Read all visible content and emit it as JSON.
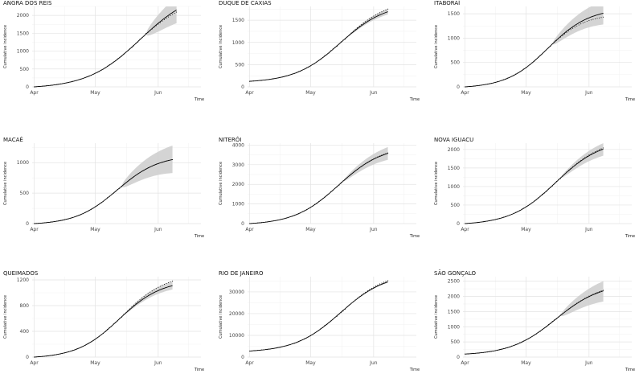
{
  "figure": {
    "x_axis_label": "Time",
    "y_axis_label": "Cumulative incidence",
    "x_tick_labels": [
      "Apr",
      "May",
      "Jun"
    ]
  },
  "colors": {
    "band": "#cccccc",
    "line": "#000000",
    "points": "#111111",
    "grid": "#e3e3e3"
  },
  "chart_data": [
    {
      "type": "line",
      "title": "ANGRA DOS REIS",
      "xlabel": "Time",
      "ylabel": "Cumulative incidence",
      "ylim": [
        0,
        2250
      ],
      "yticks": [
        0,
        500,
        1000,
        1500,
        2000
      ],
      "fit_day": 55,
      "final_value": 2150,
      "band_final": [
        1780,
        2520
      ],
      "dotted_final": 2090,
      "x_range_days": [
        -1,
        82
      ],
      "last_day": 70,
      "x_tick_days": [
        0,
        30,
        61
      ],
      "x_tick_labels": [
        "Apr",
        "May",
        "Jun"
      ]
    },
    {
      "type": "line",
      "title": "DUQUE DE CAXIAS",
      "xlabel": "Time",
      "ylabel": "Cumulative incidence",
      "ylim": [
        0,
        1810
      ],
      "yticks": [
        0,
        500,
        1000,
        1500
      ],
      "fit_day": 47,
      "final_value": 1690,
      "band_final": [
        1630,
        1760
      ],
      "dotted_final": 1750,
      "start_value": 125,
      "x_range_days": [
        -1,
        82
      ],
      "last_day": 68,
      "x_tick_days": [
        0,
        30,
        61
      ],
      "x_tick_labels": [
        "Apr",
        "May",
        "Jun"
      ]
    },
    {
      "type": "line",
      "title": "ITABORAÍ",
      "xlabel": "Time",
      "ylabel": "Cumulative incidence",
      "ylim": [
        0,
        1650
      ],
      "yticks": [
        0,
        500,
        1000,
        1500
      ],
      "fit_day": 43,
      "final_value": 1510,
      "band_final": [
        1280,
        1760
      ],
      "dotted_final": 1430,
      "x_range_days": [
        -1,
        82
      ],
      "last_day": 68,
      "x_tick_days": [
        0,
        30,
        61
      ],
      "x_tick_labels": [
        "Apr",
        "May",
        "Jun"
      ]
    },
    {
      "type": "line",
      "title": "MACAÉ",
      "xlabel": "Time",
      "ylabel": "Cumulative incidence",
      "ylim": [
        0,
        1320
      ],
      "yticks": [
        0,
        500,
        1000
      ],
      "fit_day": 43,
      "final_value": 1050,
      "band_final": [
        830,
        1280
      ],
      "dotted_final": 1050,
      "x_range_days": [
        -1,
        82
      ],
      "last_day": 68,
      "x_tick_days": [
        0,
        30,
        61
      ],
      "x_tick_labels": [
        "Apr",
        "May",
        "Jun"
      ]
    },
    {
      "type": "line",
      "title": "NITERÓI",
      "xlabel": "Time",
      "ylabel": "Cumulative incidence",
      "ylim": [
        0,
        4100
      ],
      "yticks": [
        0,
        1000,
        2000,
        3000,
        4000
      ],
      "fit_day": 46,
      "final_value": 3580,
      "band_final": [
        3250,
        3900
      ],
      "dotted_final": 3600,
      "x_range_days": [
        -1,
        82
      ],
      "last_day": 68,
      "x_tick_days": [
        0,
        30,
        61
      ],
      "x_tick_labels": [
        "Apr",
        "May",
        "Jun"
      ]
    },
    {
      "type": "line",
      "title": "NOVA IGUACU",
      "xlabel": "Time",
      "ylabel": "Cumulative incidence",
      "ylim": [
        0,
        2170
      ],
      "yticks": [
        0,
        500,
        1000,
        1500,
        2000
      ],
      "fit_day": 47,
      "final_value": 2010,
      "band_final": [
        1830,
        2170
      ],
      "dotted_final": 2040,
      "x_range_days": [
        -1,
        82
      ],
      "last_day": 68,
      "x_tick_days": [
        0,
        30,
        61
      ],
      "x_tick_labels": [
        "Apr",
        "May",
        "Jun"
      ]
    },
    {
      "type": "line",
      "title": "QUEIMADOS",
      "xlabel": "Time",
      "ylabel": "Cumulative incidence",
      "ylim": [
        0,
        1250
      ],
      "yticks": [
        0,
        400,
        800,
        1200
      ],
      "fit_day": 44,
      "final_value": 1110,
      "band_final": [
        1050,
        1180
      ],
      "dotted_final": 1180,
      "x_range_days": [
        -1,
        82
      ],
      "last_day": 68,
      "x_tick_days": [
        0,
        30,
        61
      ],
      "x_tick_labels": [
        "Apr",
        "May",
        "Jun"
      ]
    },
    {
      "type": "line",
      "title": "RIO DE JANEIRO",
      "xlabel": "Time",
      "ylabel": "Cumulative incidence",
      "ylim": [
        0,
        37000
      ],
      "yticks": [
        0,
        10000,
        20000,
        30000
      ],
      "fit_day": 47,
      "final_value": 34600,
      "band_final": [
        34200,
        35000
      ],
      "dotted_final": 35200,
      "start_value": 2800,
      "x_range_days": [
        -1,
        82
      ],
      "last_day": 68,
      "x_tick_days": [
        0,
        30,
        61
      ],
      "x_tick_labels": [
        "Apr",
        "May",
        "Jun"
      ]
    },
    {
      "type": "line",
      "title": "SÃO GONÇALO",
      "xlabel": "Time",
      "ylabel": "Cumulative incidence",
      "ylim": [
        0,
        2650
      ],
      "yticks": [
        0,
        500,
        1000,
        1500,
        2000,
        2500
      ],
      "fit_day": 47,
      "final_value": 2180,
      "band_final": [
        1830,
        2500
      ],
      "dotted_final": 2200,
      "start_value": 100,
      "x_range_days": [
        -1,
        82
      ],
      "last_day": 68,
      "x_tick_days": [
        0,
        30,
        61
      ],
      "x_tick_labels": [
        "Apr",
        "May",
        "Jun"
      ]
    }
  ]
}
